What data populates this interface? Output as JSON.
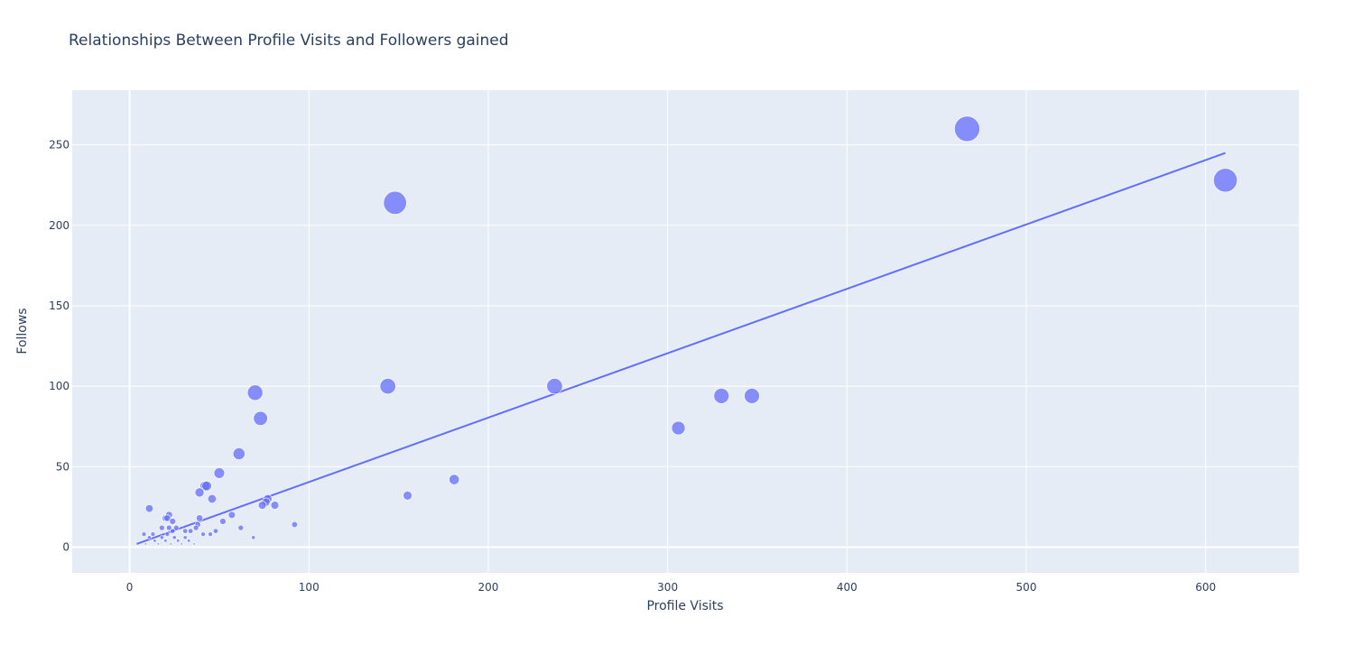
{
  "chart_data": {
    "type": "scatter",
    "title": "Relationships Between Profile Visits and Followers gained",
    "xlabel": "Profile Visits",
    "ylabel": "Follows",
    "xlim": [
      -32,
      652
    ],
    "ylim": [
      -16,
      284
    ],
    "xticks": [
      0,
      100,
      200,
      300,
      400,
      500,
      600
    ],
    "yticks": [
      0,
      50,
      100,
      150,
      200,
      250
    ],
    "grid": true,
    "legend": "none",
    "colors": {
      "plot_bg": "#e5ecf6",
      "grid": "#ffffff",
      "marker": "#636efa",
      "trendline": "#636efa",
      "text": "#2a3f5f"
    },
    "series": [
      {
        "mode": "markers",
        "size_encodes": "Follows",
        "points": [
          {
            "x": 467,
            "y": 260
          },
          {
            "x": 611,
            "y": 228
          },
          {
            "x": 148,
            "y": 214
          },
          {
            "x": 237,
            "y": 100
          },
          {
            "x": 144,
            "y": 100
          },
          {
            "x": 70,
            "y": 96
          },
          {
            "x": 330,
            "y": 94
          },
          {
            "x": 347,
            "y": 94
          },
          {
            "x": 73,
            "y": 80
          },
          {
            "x": 306,
            "y": 74
          },
          {
            "x": 61,
            "y": 58
          },
          {
            "x": 50,
            "y": 46
          },
          {
            "x": 181,
            "y": 42
          },
          {
            "x": 42,
            "y": 38
          },
          {
            "x": 43,
            "y": 38
          },
          {
            "x": 39,
            "y": 34
          },
          {
            "x": 155,
            "y": 32
          },
          {
            "x": 77,
            "y": 30
          },
          {
            "x": 46,
            "y": 30
          },
          {
            "x": 76,
            "y": 28
          },
          {
            "x": 74,
            "y": 26
          },
          {
            "x": 81,
            "y": 26
          },
          {
            "x": 11,
            "y": 24
          },
          {
            "x": 57,
            "y": 20
          },
          {
            "x": 22,
            "y": 20
          },
          {
            "x": 20,
            "y": 18
          },
          {
            "x": 21,
            "y": 18
          },
          {
            "x": 39,
            "y": 18
          },
          {
            "x": 24,
            "y": 16
          },
          {
            "x": 52,
            "y": 16
          },
          {
            "x": 38,
            "y": 14
          },
          {
            "x": 92,
            "y": 14
          },
          {
            "x": 18,
            "y": 12
          },
          {
            "x": 22,
            "y": 12
          },
          {
            "x": 26,
            "y": 12
          },
          {
            "x": 37,
            "y": 12
          },
          {
            "x": 62,
            "y": 12
          },
          {
            "x": 24,
            "y": 10
          },
          {
            "x": 31,
            "y": 10
          },
          {
            "x": 34,
            "y": 10
          },
          {
            "x": 48,
            "y": 10
          },
          {
            "x": 8,
            "y": 8
          },
          {
            "x": 13,
            "y": 8
          },
          {
            "x": 21,
            "y": 8
          },
          {
            "x": 41,
            "y": 8
          },
          {
            "x": 45,
            "y": 8
          },
          {
            "x": 11,
            "y": 6
          },
          {
            "x": 18,
            "y": 6
          },
          {
            "x": 25,
            "y": 6
          },
          {
            "x": 31,
            "y": 6
          },
          {
            "x": 69,
            "y": 6
          },
          {
            "x": 14,
            "y": 4
          },
          {
            "x": 20,
            "y": 4
          },
          {
            "x": 27,
            "y": 4
          },
          {
            "x": 33,
            "y": 4
          },
          {
            "x": 9,
            "y": 2
          },
          {
            "x": 16,
            "y": 2
          },
          {
            "x": 23,
            "y": 2
          },
          {
            "x": 29,
            "y": 2
          },
          {
            "x": 36,
            "y": 2
          }
        ]
      },
      {
        "mode": "lines",
        "points": [
          {
            "x": 4,
            "y": 2
          },
          {
            "x": 611,
            "y": 245
          }
        ]
      }
    ]
  }
}
